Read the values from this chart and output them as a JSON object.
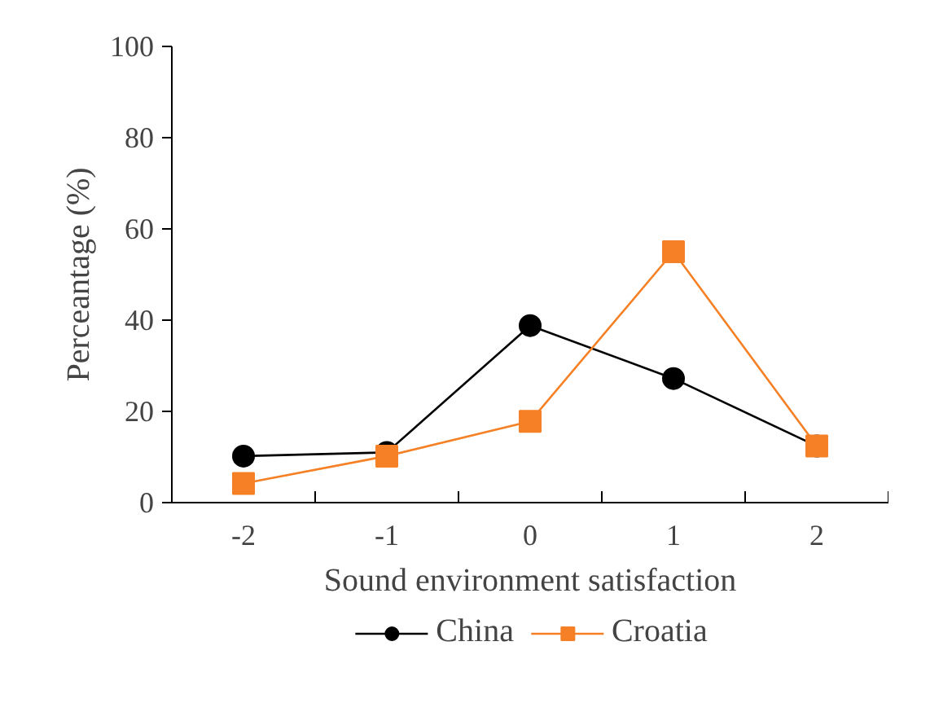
{
  "chart_data": {
    "type": "line",
    "xlabel": "Sound environment satisfaction",
    "ylabel": "Perceantage (%)",
    "categories": [
      "-2",
      "-1",
      "0",
      "1",
      "2"
    ],
    "series": [
      {
        "name": "China",
        "color": "#000000",
        "marker": "circle",
        "values": [
          10.2,
          11,
          38.8,
          27.2,
          12.4
        ]
      },
      {
        "name": "Croatia",
        "color": "#f58025",
        "marker": "square",
        "values": [
          4.2,
          10.2,
          17.8,
          55,
          12.4
        ]
      }
    ],
    "ylim": [
      0,
      100
    ],
    "yticks": [
      0,
      20,
      40,
      60,
      80,
      100
    ],
    "grid": false,
    "legend": "bottom",
    "line_style": "solid"
  }
}
